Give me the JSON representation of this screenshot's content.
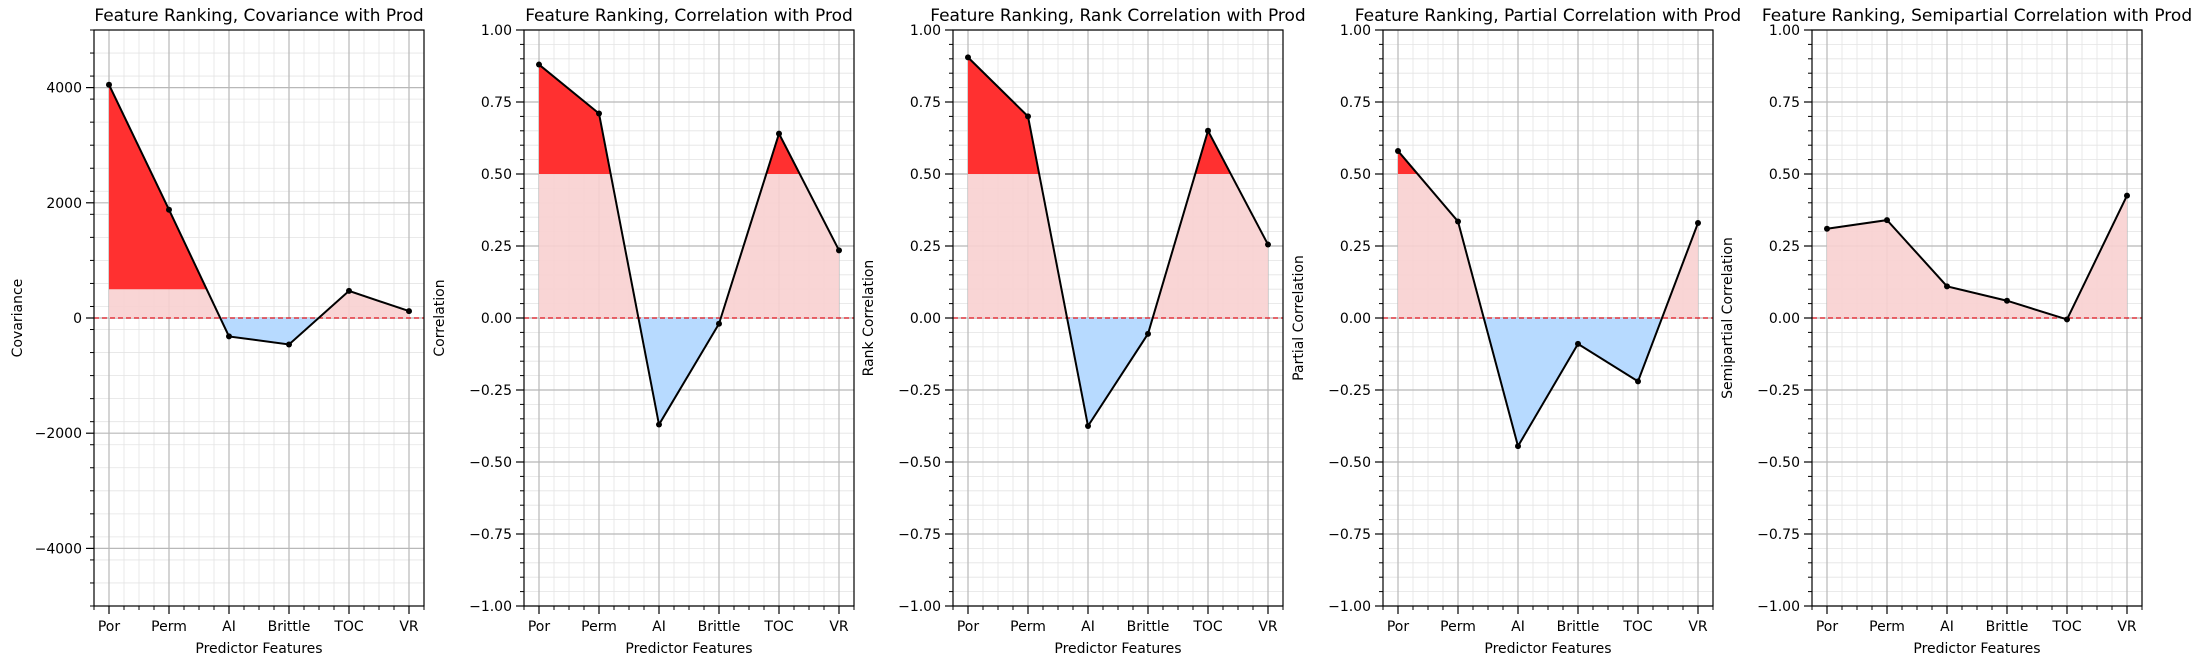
{
  "figure": {
    "xlabel": "Predictor Features",
    "categories": [
      "Por",
      "Perm",
      "AI",
      "Brittle",
      "TOC",
      "VR"
    ],
    "colors": {
      "positive_fill": "#f8d0d0",
      "high_fill": "#ff2a2a",
      "negative_fill": "#b7daff",
      "line": "#000000",
      "zero_line": "#e0141e"
    }
  },
  "chart_data": [
    {
      "type": "line",
      "title": "Feature Ranking, Covariance with Prod",
      "xlabel": "Predictor Features",
      "ylabel": "Covariance",
      "categories": [
        "Por",
        "Perm",
        "AI",
        "Brittle",
        "TOC",
        "VR"
      ],
      "values": [
        4050,
        1880,
        -320,
        -460,
        470,
        120
      ],
      "ylim": [
        -5000,
        5000
      ],
      "yticks": [
        -4000,
        -2000,
        0,
        2000,
        4000
      ],
      "ytick_labels": [
        "−4000",
        "−2000",
        "0",
        "2000",
        "4000"
      ],
      "highlight_threshold": 500,
      "grid": true
    },
    {
      "type": "line",
      "title": "Feature Ranking, Correlation with Prod",
      "xlabel": "Predictor Features",
      "ylabel": "Correlation",
      "categories": [
        "Por",
        "Perm",
        "AI",
        "Brittle",
        "TOC",
        "VR"
      ],
      "values": [
        0.88,
        0.71,
        -0.37,
        -0.02,
        0.64,
        0.235
      ],
      "ylim": [
        -1.0,
        1.0
      ],
      "yticks": [
        -1.0,
        -0.75,
        -0.5,
        -0.25,
        0.0,
        0.25,
        0.5,
        0.75,
        1.0
      ],
      "ytick_labels": [
        "−1.00",
        "−0.75",
        "−0.50",
        "−0.25",
        "0.00",
        "0.25",
        "0.50",
        "0.75",
        "1.00"
      ],
      "highlight_threshold": 0.5,
      "grid": true
    },
    {
      "type": "line",
      "title": "Feature Ranking, Rank Correlation with Prod",
      "xlabel": "Predictor Features",
      "ylabel": "Rank Correlation",
      "categories": [
        "Por",
        "Perm",
        "AI",
        "Brittle",
        "TOC",
        "VR"
      ],
      "values": [
        0.905,
        0.7,
        -0.375,
        -0.055,
        0.65,
        0.255
      ],
      "ylim": [
        -1.0,
        1.0
      ],
      "yticks": [
        -1.0,
        -0.75,
        -0.5,
        -0.25,
        0.0,
        0.25,
        0.5,
        0.75,
        1.0
      ],
      "ytick_labels": [
        "−1.00",
        "−0.75",
        "−0.50",
        "−0.25",
        "0.00",
        "0.25",
        "0.50",
        "0.75",
        "1.00"
      ],
      "highlight_threshold": 0.5,
      "grid": true
    },
    {
      "type": "line",
      "title": "Feature Ranking, Partial Correlation with Prod",
      "xlabel": "Predictor Features",
      "ylabel": "Partial Correlation",
      "categories": [
        "Por",
        "Perm",
        "AI",
        "Brittle",
        "TOC",
        "VR"
      ],
      "values": [
        0.58,
        0.335,
        -0.445,
        -0.09,
        -0.22,
        0.33
      ],
      "ylim": [
        -1.0,
        1.0
      ],
      "yticks": [
        -1.0,
        -0.75,
        -0.5,
        -0.25,
        0.0,
        0.25,
        0.5,
        0.75,
        1.0
      ],
      "ytick_labels": [
        "−1.00",
        "−0.75",
        "−0.50",
        "−0.25",
        "0.00",
        "0.25",
        "0.50",
        "0.75",
        "1.00"
      ],
      "highlight_threshold": 0.5,
      "grid": true
    },
    {
      "type": "line",
      "title": "Feature Ranking, Semipartial Correlation with Prod",
      "xlabel": "Predictor Features",
      "ylabel": "Semipartial Correlation",
      "categories": [
        "Por",
        "Perm",
        "AI",
        "Brittle",
        "TOC",
        "VR"
      ],
      "values": [
        0.31,
        0.34,
        0.11,
        0.06,
        -0.005,
        0.425
      ],
      "ylim": [
        -1.0,
        1.0
      ],
      "yticks": [
        -1.0,
        -0.75,
        -0.5,
        -0.25,
        0.0,
        0.25,
        0.5,
        0.75,
        1.0
      ],
      "ytick_labels": [
        "−1.00",
        "−0.75",
        "−0.50",
        "−0.25",
        "0.00",
        "0.25",
        "0.50",
        "0.75",
        "1.00"
      ],
      "highlight_threshold": 0.5,
      "grid": true
    }
  ]
}
